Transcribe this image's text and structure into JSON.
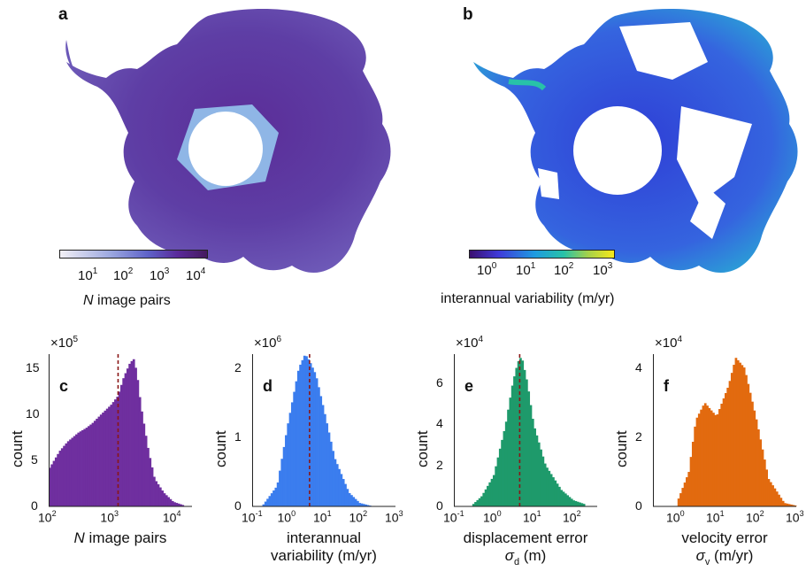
{
  "panels": {
    "a": {
      "label": "a",
      "cbar_title_italic": "N",
      "cbar_title_rest": " image pairs",
      "cbar_ticks": [
        {
          "base": "10",
          "exp": "1"
        },
        {
          "base": "10",
          "exp": "2"
        },
        {
          "base": "10",
          "exp": "3"
        },
        {
          "base": "10",
          "exp": "4"
        }
      ],
      "colors": [
        "#f2f0f5",
        "#9aa6df",
        "#5e62c8",
        "#5a2a9a",
        "#451a5e"
      ]
    },
    "b": {
      "label": "b",
      "cbar_title": "interannual variability (m/yr)",
      "cbar_ticks": [
        {
          "base": "10",
          "exp": "0"
        },
        {
          "base": "10",
          "exp": "1"
        },
        {
          "base": "10",
          "exp": "2"
        },
        {
          "base": "10",
          "exp": "3"
        }
      ],
      "colors": [
        "#3b0f70",
        "#3f3ad9",
        "#1f9be0",
        "#28c2a8",
        "#a5d14a",
        "#f6e81a"
      ]
    }
  },
  "histograms": {
    "c": {
      "label": "c",
      "multiplier_exp": "5",
      "ylabel": "count",
      "xlabel_italic": "N",
      "xlabel_rest": " image pairs",
      "yticks": [
        "0",
        "5",
        "10",
        "15"
      ],
      "xticks": [
        {
          "exp": "2"
        },
        {
          "exp": "3"
        },
        {
          "exp": "4"
        }
      ],
      "color": "#6f2f9f"
    },
    "d": {
      "label": "d",
      "multiplier_exp": "6",
      "ylabel": "count",
      "xlabel_line1": "interannual",
      "xlabel_line2": "variability (m/yr)",
      "yticks": [
        "0",
        "1",
        "2"
      ],
      "xticks": [
        {
          "exp": "-1"
        },
        {
          "exp": "0"
        },
        {
          "exp": "1"
        },
        {
          "exp": "2"
        },
        {
          "exp": "3"
        }
      ],
      "color": "#3b7dee"
    },
    "e": {
      "label": "e",
      "multiplier_exp": "4",
      "ylabel": "count",
      "xlabel_line1": "displacement error",
      "xlabel_sym": "σ",
      "xlabel_sub": "d",
      "xlabel_unit": " (m)",
      "yticks": [
        "0",
        "2",
        "4",
        "6"
      ],
      "xticks": [
        {
          "exp": "-1"
        },
        {
          "exp": "0"
        },
        {
          "exp": "1"
        },
        {
          "exp": "2"
        }
      ],
      "color": "#1e9a6b"
    },
    "f": {
      "label": "f",
      "multiplier_exp": "4",
      "ylabel": "count",
      "xlabel_line1": "velocity error",
      "xlabel_sym": "σ",
      "xlabel_sub": "v",
      "xlabel_unit": " (m/yr)",
      "yticks": [
        "0",
        "2",
        "4"
      ],
      "xticks": [
        {
          "exp": "0"
        },
        {
          "exp": "1"
        },
        {
          "exp": "2"
        },
        {
          "exp": "3"
        }
      ],
      "color": "#e26a0f"
    }
  },
  "chart_data": [
    {
      "type": "bar",
      "xlabel": "N image pairs",
      "ylabel": "count (×10^5)",
      "xscale": "log",
      "x": [
        100,
        150,
        200,
        300,
        400,
        500,
        700,
        1000,
        1300,
        1600,
        2000,
        2300,
        2600,
        3000,
        4000,
        5000,
        7000,
        10000,
        15000
      ],
      "values": [
        4,
        6,
        7,
        8,
        8.5,
        9,
        10,
        11,
        12,
        14,
        15.5,
        16,
        14.5,
        11,
        6,
        3,
        1.5,
        0.5,
        0.1
      ],
      "median": 1300,
      "ylim": [
        0,
        16.5
      ]
    },
    {
      "type": "bar",
      "xlabel": "interannual variability (m/yr)",
      "ylabel": "count (×10^6)",
      "xscale": "log",
      "x": [
        0.2,
        0.5,
        1,
        2,
        3,
        4,
        6,
        10,
        20,
        50,
        100,
        200
      ],
      "values": [
        0.02,
        0.3,
        1.2,
        2.0,
        2.2,
        2.1,
        1.9,
        1.4,
        0.7,
        0.2,
        0.05,
        0.01
      ],
      "median": 4,
      "ylim": [
        0,
        2.2
      ]
    },
    {
      "type": "bar",
      "xlabel": "displacement error σd (m)",
      "ylabel": "count (×10^4)",
      "xscale": "log",
      "x": [
        0.3,
        0.5,
        1,
        2,
        3,
        4,
        5,
        7,
        10,
        20,
        50,
        100,
        200
      ],
      "values": [
        0.1,
        0.5,
        1.5,
        4,
        6,
        7,
        7.3,
        6,
        4,
        2,
        0.8,
        0.3,
        0.1
      ],
      "median": 4.5,
      "ylim": [
        0,
        7.4
      ]
    },
    {
      "type": "bar",
      "xlabel": "velocity error σv (m/yr)",
      "ylabel": "count (×10^4)",
      "xscale": "log",
      "x": [
        1,
        2,
        3,
        5,
        7,
        10,
        20,
        30,
        50,
        100,
        200,
        500,
        1000
      ],
      "values": [
        0.1,
        1,
        2.5,
        3,
        2.8,
        2.6,
        3.5,
        4.3,
        4,
        2.5,
        0.8,
        0.1,
        0.02
      ],
      "ylim": [
        0,
        4.4
      ]
    }
  ]
}
